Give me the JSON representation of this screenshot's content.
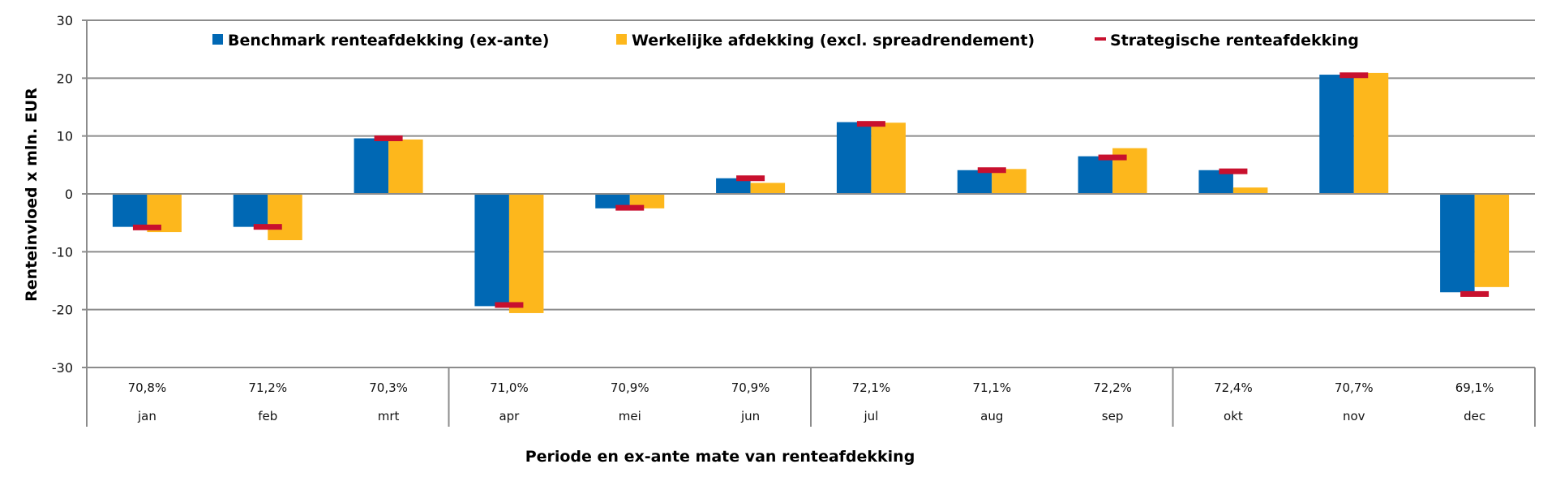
{
  "chart_data": {
    "type": "bar",
    "title": "",
    "xlabel": "Periode en ex-ante mate van renteafdekking",
    "ylabel": "Renteinvloed x mln. EUR",
    "ylim": [
      -30,
      30
    ],
    "yticks": [
      30,
      20,
      10,
      0,
      -10,
      -20,
      -30
    ],
    "grid": true,
    "legend_position": "top",
    "categories": [
      "jan",
      "feb",
      "mrt",
      "apr",
      "mei",
      "jun",
      "jul",
      "aug",
      "sep",
      "okt",
      "nov",
      "dec"
    ],
    "hedge_ratios": [
      "70,8%",
      "71,2%",
      "70,3%",
      "71,0%",
      "70,9%",
      "70,9%",
      "72,1%",
      "71,1%",
      "72,2%",
      "72,4%",
      "70,7%",
      "69,1%"
    ],
    "quarter_separators_after": [
      "mrt",
      "jun",
      "sep"
    ],
    "series": [
      {
        "name": "Benchmark renteafdekking (ex-ante)",
        "type": "bar",
        "color": "#0068B4",
        "values": [
          -5.7,
          -5.7,
          9.6,
          -19.4,
          -2.5,
          2.7,
          12.4,
          4.1,
          6.5,
          4.1,
          20.6,
          -17.0
        ]
      },
      {
        "name": "Werkelijke afdekking (excl. spreadrendement)",
        "type": "bar",
        "color": "#FDB71C",
        "values": [
          -6.6,
          -8.0,
          9.4,
          -20.6,
          -2.5,
          1.9,
          12.3,
          4.3,
          7.9,
          1.1,
          20.9,
          -16.1
        ]
      },
      {
        "name": "Strategische renteafdekking",
        "type": "marker",
        "color": "#C8102E",
        "values": [
          -5.8,
          -5.7,
          9.6,
          -19.2,
          -2.4,
          2.7,
          12.1,
          4.1,
          6.3,
          3.9,
          20.5,
          -17.3
        ]
      }
    ]
  }
}
